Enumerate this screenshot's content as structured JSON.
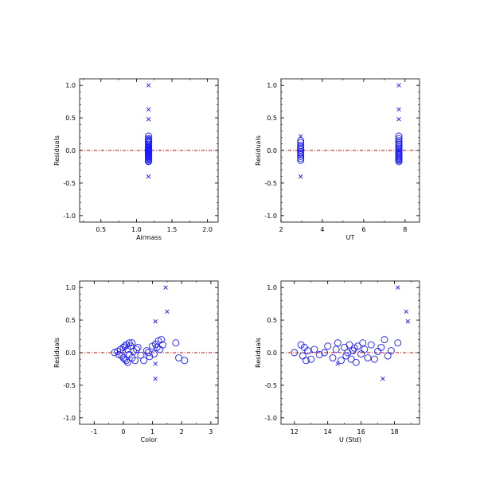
{
  "colors": {
    "marker": "#1a1aff",
    "zero_line": "#cc0000",
    "axis": "#000000"
  },
  "chart_data": [
    {
      "type": "scatter",
      "xlabel": "Airmass",
      "ylabel": "Residuals",
      "xlim": [
        0.2,
        2.15
      ],
      "ylim": [
        -1.1,
        1.1
      ],
      "xticks": [
        0.5,
        1.0,
        1.5,
        2.0
      ],
      "xtick_labels": [
        "0.5",
        "1.0",
        "1.5",
        "2.0"
      ],
      "yticks": [
        -1.0,
        -0.5,
        0.0,
        0.5,
        1.0
      ],
      "ytick_labels": [
        "-1.0",
        "-0.5",
        "0.0",
        "0.5",
        "1.0"
      ],
      "zero_line": 0,
      "series": [
        {
          "marker": "circle",
          "x": [
            1.17,
            1.17,
            1.17,
            1.17,
            1.17,
            1.17,
            1.17,
            1.17,
            1.17,
            1.17,
            1.17,
            1.17,
            1.17,
            1.17,
            1.17,
            1.17,
            1.17,
            1.17,
            1.17,
            1.17,
            1.17,
            1.17,
            1.17,
            1.17,
            1.17,
            1.17,
            1.17,
            1.17
          ],
          "y": [
            0.22,
            0.18,
            0.16,
            0.14,
            0.12,
            0.1,
            0.08,
            0.06,
            0.04,
            0.03,
            0.02,
            0.01,
            0.0,
            -0.01,
            -0.02,
            -0.03,
            -0.04,
            -0.05,
            -0.06,
            -0.08,
            -0.09,
            -0.1,
            -0.12,
            -0.14,
            -0.16,
            -0.17,
            0.05,
            -0.07
          ]
        },
        {
          "marker": "x",
          "x": [
            1.17,
            1.17,
            1.17,
            1.17,
            1.17,
            1.17,
            1.17
          ],
          "y": [
            1.0,
            0.63,
            0.48,
            0.2,
            0.0,
            -0.17,
            -0.4
          ]
        }
      ]
    },
    {
      "type": "scatter",
      "xlabel": "UT",
      "ylabel": "Residuals",
      "xlim": [
        2.0,
        8.7
      ],
      "ylim": [
        -1.1,
        1.1
      ],
      "xticks": [
        2,
        4,
        6,
        8
      ],
      "xtick_labels": [
        "2",
        "4",
        "6",
        "8"
      ],
      "yticks": [
        -1.0,
        -0.5,
        0.0,
        0.5,
        1.0
      ],
      "ytick_labels": [
        "-1.0",
        "-0.5",
        "0.0",
        "0.5",
        "1.0"
      ],
      "zero_line": 0,
      "series": [
        {
          "marker": "circle",
          "x": [
            2.95,
            2.95,
            2.95,
            2.95,
            2.95,
            2.95,
            2.95,
            2.95,
            2.95,
            2.95,
            2.95,
            2.95,
            7.7,
            7.7,
            7.7,
            7.7,
            7.7,
            7.7,
            7.7,
            7.7,
            7.7,
            7.7,
            7.7,
            7.7,
            7.7,
            7.7,
            7.7,
            7.7,
            7.7,
            7.7
          ],
          "y": [
            0.15,
            0.12,
            0.08,
            0.05,
            0.03,
            0.01,
            -0.02,
            -0.04,
            -0.06,
            -0.09,
            -0.12,
            -0.15,
            0.22,
            0.18,
            0.15,
            0.12,
            0.1,
            0.08,
            0.05,
            0.03,
            0.01,
            -0.01,
            -0.03,
            -0.05,
            -0.07,
            -0.09,
            -0.11,
            -0.13,
            -0.15,
            -0.17
          ]
        },
        {
          "marker": "x",
          "x": [
            2.95,
            2.95,
            7.7,
            7.7,
            7.7,
            7.7,
            7.7
          ],
          "y": [
            0.22,
            -0.4,
            1.0,
            0.63,
            0.48,
            0.0,
            -0.17
          ]
        }
      ]
    },
    {
      "type": "scatter",
      "xlabel": "Color",
      "ylabel": "Residuals",
      "xlim": [
        -1.5,
        3.25
      ],
      "ylim": [
        -1.1,
        1.1
      ],
      "xticks": [
        -1,
        0,
        1,
        2,
        3
      ],
      "xtick_labels": [
        "-1",
        "0",
        "1",
        "2",
        "3"
      ],
      "yticks": [
        -1.0,
        -0.5,
        0.0,
        0.5,
        1.0
      ],
      "ytick_labels": [
        "-1.0",
        "-0.5",
        "0.0",
        "0.5",
        "1.0"
      ],
      "zero_line": 0,
      "series": [
        {
          "marker": "circle",
          "x": [
            -0.3,
            -0.2,
            -0.15,
            -0.1,
            -0.05,
            0.0,
            0.0,
            0.05,
            0.05,
            0.1,
            0.1,
            0.15,
            0.15,
            0.2,
            0.2,
            0.25,
            0.3,
            0.3,
            0.35,
            0.4,
            0.45,
            0.5,
            0.6,
            0.7,
            0.8,
            0.85,
            0.9,
            1.0,
            1.05,
            1.1,
            1.15,
            1.2,
            1.25,
            1.3,
            1.35,
            1.8,
            1.9,
            2.1
          ],
          "y": [
            0.0,
            0.02,
            -0.03,
            0.05,
            -0.05,
            0.08,
            -0.08,
            0.1,
            -0.1,
            0.12,
            -0.12,
            0.05,
            -0.15,
            0.15,
            -0.03,
            0.1,
            0.15,
            -0.08,
            0.02,
            -0.12,
            0.05,
            0.08,
            -0.04,
            -0.12,
            0.03,
            0.0,
            -0.06,
            0.1,
            -0.02,
            0.13,
            0.08,
            0.18,
            0.05,
            0.2,
            0.12,
            0.15,
            -0.08,
            -0.12
          ]
        },
        {
          "marker": "x",
          "x": [
            1.45,
            1.5,
            1.1,
            1.1,
            1.1
          ],
          "y": [
            1.0,
            0.63,
            0.48,
            -0.17,
            -0.4
          ]
        }
      ]
    },
    {
      "type": "scatter",
      "xlabel": "U (Std)",
      "ylabel": "Residuals",
      "xlim": [
        11.2,
        19.5
      ],
      "ylim": [
        -1.1,
        1.1
      ],
      "xticks": [
        12,
        14,
        16,
        18
      ],
      "xtick_labels": [
        "12",
        "14",
        "16",
        "18"
      ],
      "yticks": [
        -1.0,
        -0.5,
        0.0,
        0.5,
        1.0
      ],
      "ytick_labels": [
        "-1.0",
        "-0.5",
        "0.0",
        "0.5",
        "1.0"
      ],
      "zero_line": 0,
      "series": [
        {
          "marker": "circle",
          "x": [
            12.0,
            12.4,
            12.5,
            12.6,
            12.7,
            12.8,
            13.0,
            13.2,
            13.5,
            13.8,
            14.0,
            14.3,
            14.5,
            14.6,
            14.8,
            15.0,
            15.1,
            15.2,
            15.3,
            15.4,
            15.5,
            15.6,
            15.7,
            15.8,
            16.0,
            16.1,
            16.2,
            16.4,
            16.6,
            16.8,
            17.0,
            17.2,
            17.4,
            17.6,
            17.8,
            18.2
          ],
          "y": [
            0.0,
            0.12,
            -0.05,
            0.08,
            -0.12,
            0.03,
            -0.1,
            0.05,
            -0.03,
            0.0,
            0.1,
            -0.08,
            0.05,
            0.15,
            -0.12,
            0.08,
            -0.05,
            0.0,
            0.12,
            -0.1,
            0.03,
            0.07,
            -0.15,
            0.1,
            -0.02,
            0.15,
            0.05,
            -0.08,
            0.12,
            -0.1,
            0.02,
            0.08,
            0.2,
            -0.05,
            0.03,
            0.15
          ]
        },
        {
          "marker": "x",
          "x": [
            18.2,
            18.7,
            18.8,
            17.3,
            14.6
          ],
          "y": [
            1.0,
            0.63,
            0.48,
            -0.4,
            -0.17
          ]
        }
      ]
    }
  ]
}
